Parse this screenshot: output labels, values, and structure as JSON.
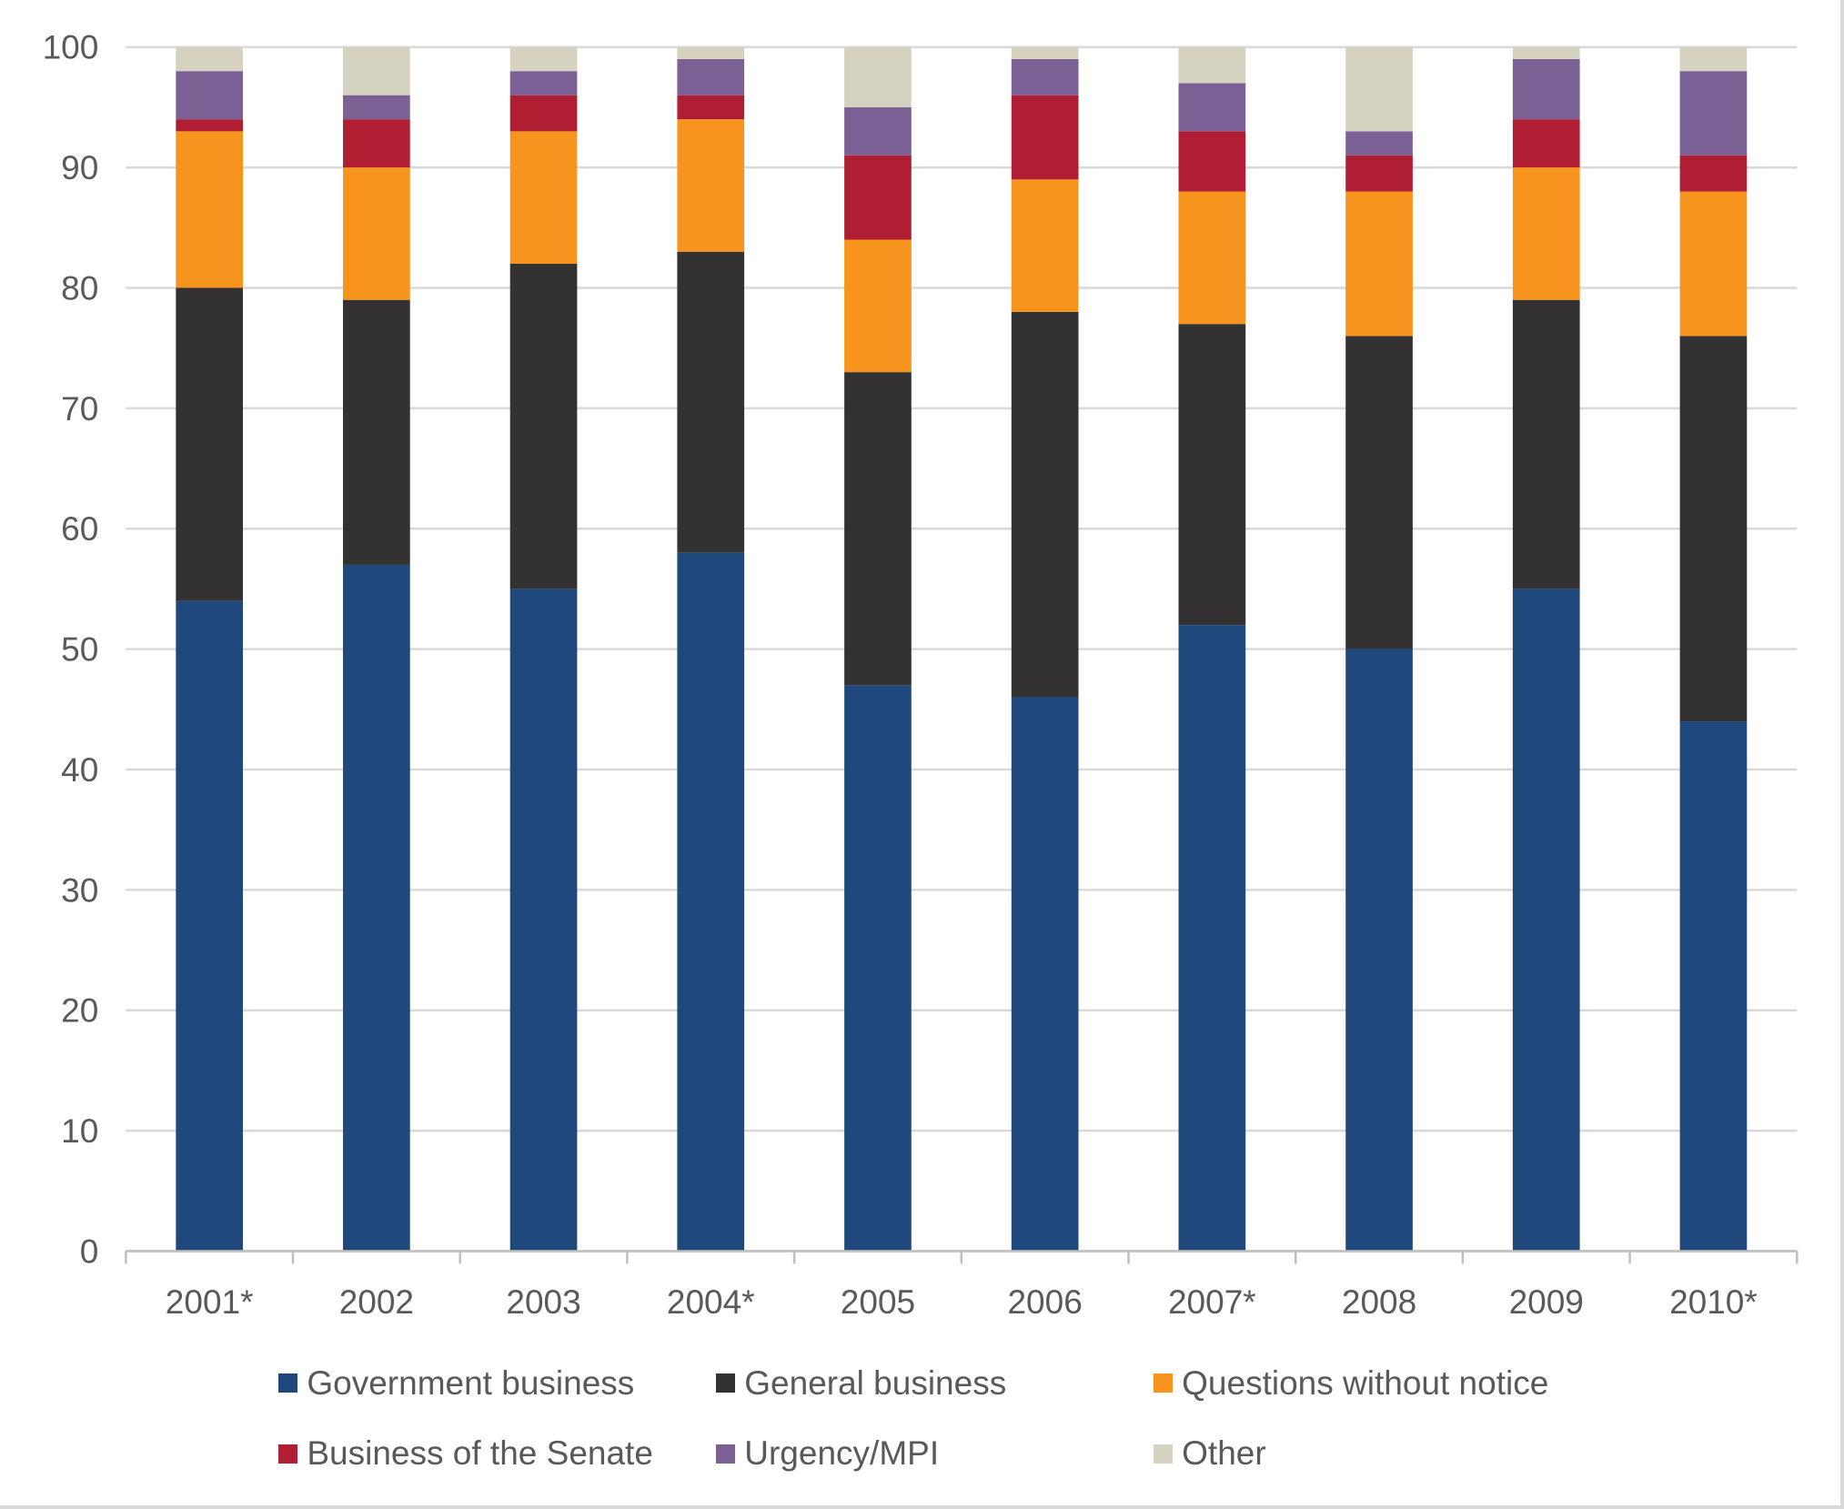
{
  "chart_data": {
    "type": "bar",
    "stacked": true,
    "title": "",
    "xlabel": "",
    "ylabel": "",
    "ylim": [
      0,
      100
    ],
    "yticks": [
      0,
      10,
      20,
      30,
      40,
      50,
      60,
      70,
      80,
      90,
      100
    ],
    "grid": true,
    "legend_position": "bottom",
    "categories": [
      "2001*",
      "2002",
      "2003",
      "2004*",
      "2005",
      "2006",
      "2007*",
      "2008",
      "2009",
      "2010*"
    ],
    "series": [
      {
        "name": "Government business",
        "color": "#1f497d",
        "values": [
          54,
          57,
          55,
          58,
          47,
          46,
          52,
          50,
          55,
          44
        ]
      },
      {
        "name": "General business",
        "color": "#333132",
        "values": [
          26,
          22,
          27,
          25,
          26,
          32,
          25,
          26,
          24,
          32
        ]
      },
      {
        "name": "Questions without notice",
        "color": "#f7941d",
        "values": [
          13,
          11,
          11,
          11,
          11,
          11,
          11,
          12,
          11,
          12
        ]
      },
      {
        "name": "Business of the Senate",
        "color": "#b01e34",
        "values": [
          1,
          4,
          3,
          2,
          7,
          7,
          5,
          3,
          4,
          3
        ]
      },
      {
        "name": "Urgency/MPI",
        "color": "#7b6095",
        "values": [
          4,
          2,
          2,
          3,
          4,
          3,
          4,
          2,
          5,
          7
        ]
      },
      {
        "name": "Other",
        "color": "#d5d2bf",
        "values": [
          2,
          4,
          2,
          1,
          5,
          1,
          3,
          7,
          1,
          2
        ]
      }
    ]
  }
}
